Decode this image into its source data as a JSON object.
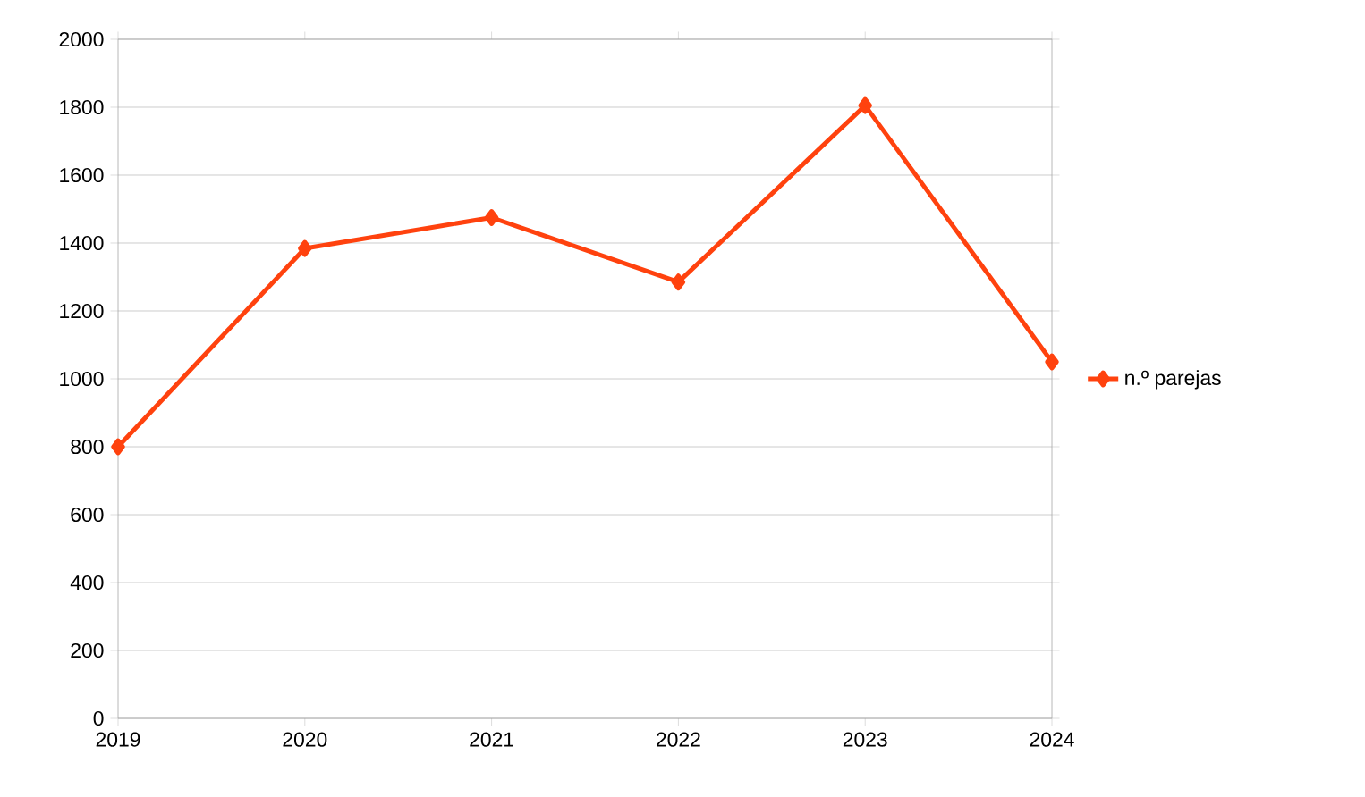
{
  "chart_data": {
    "type": "line",
    "x": [
      2019,
      2020,
      2021,
      2022,
      2023,
      2024
    ],
    "series": [
      {
        "name": "n.º parejas",
        "color": "#ff420e",
        "values": [
          800,
          1384,
          1475,
          1285,
          1805,
          1050
        ]
      }
    ],
    "xlim": [
      2019,
      2024
    ],
    "xticks": [
      2019,
      2020,
      2021,
      2022,
      2023,
      2024
    ],
    "ylim": [
      0,
      2000
    ],
    "yticks": [
      0,
      200,
      400,
      600,
      800,
      1000,
      1200,
      1400,
      1600,
      1800,
      2000
    ],
    "grid": "y",
    "legend": "right",
    "marker": "diamond",
    "line_style": "solid"
  }
}
